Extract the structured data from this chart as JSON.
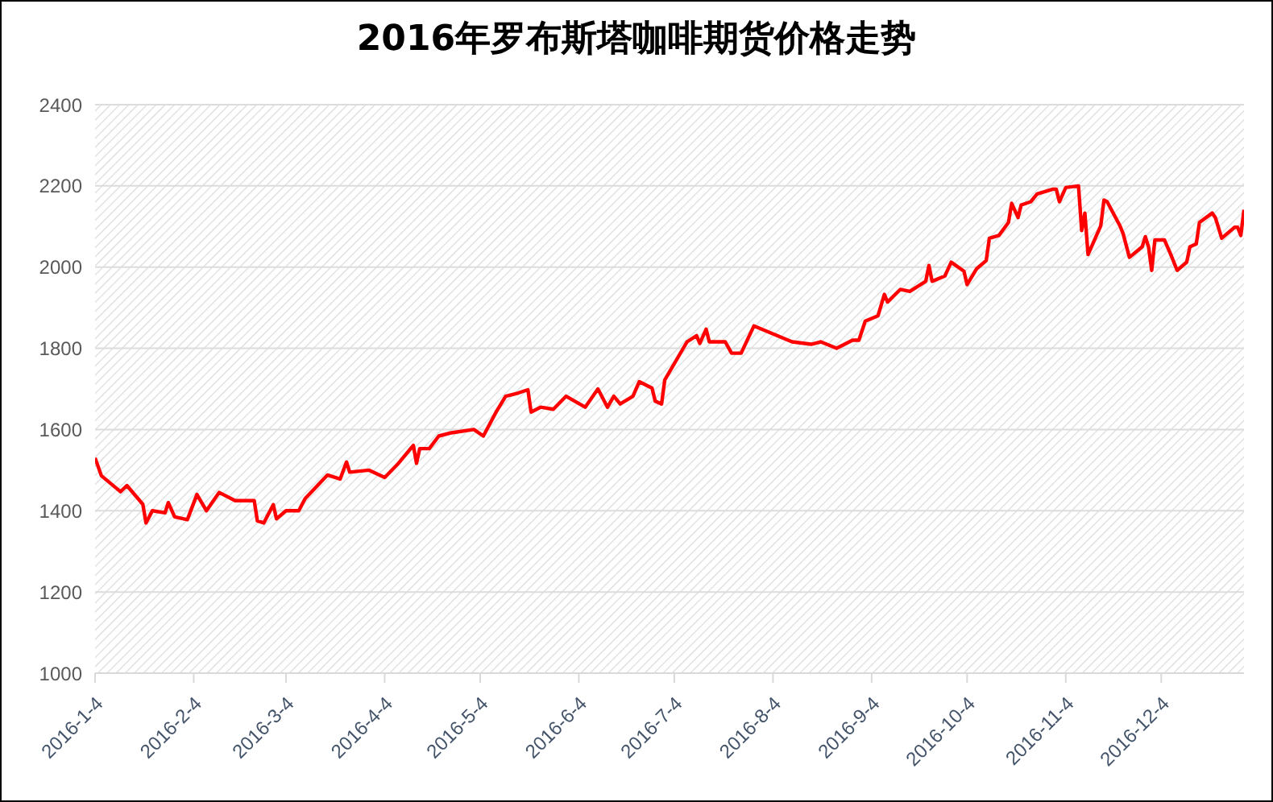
{
  "chart_data": {
    "type": "line",
    "title": "2016年罗布斯塔咖啡期货价格走势",
    "x": [
      "2016-01-04",
      "2016-01-06",
      "2016-01-12",
      "2016-01-14",
      "2016-01-19",
      "2016-01-20",
      "2016-01-22",
      "2016-01-26",
      "2016-01-27",
      "2016-01-29",
      "2016-02-02",
      "2016-02-05",
      "2016-02-08",
      "2016-02-12",
      "2016-02-17",
      "2016-02-23",
      "2016-02-24",
      "2016-02-26",
      "2016-02-29",
      "2016-03-01",
      "2016-03-04",
      "2016-03-08",
      "2016-03-10",
      "2016-03-17",
      "2016-03-21",
      "2016-03-23",
      "2016-03-24",
      "2016-03-30",
      "2016-04-04",
      "2016-04-08",
      "2016-04-13",
      "2016-04-14",
      "2016-04-15",
      "2016-04-18",
      "2016-04-21",
      "2016-04-25",
      "2016-05-02",
      "2016-05-05",
      "2016-05-09",
      "2016-05-12",
      "2016-05-16",
      "2016-05-19",
      "2016-05-20",
      "2016-05-23",
      "2016-05-27",
      "2016-05-31",
      "2016-06-06",
      "2016-06-10",
      "2016-06-13",
      "2016-06-15",
      "2016-06-17",
      "2016-06-21",
      "2016-06-23",
      "2016-06-27",
      "2016-06-28",
      "2016-06-30",
      "2016-07-01",
      "2016-07-08",
      "2016-07-11",
      "2016-07-12",
      "2016-07-14",
      "2016-07-15",
      "2016-07-20",
      "2016-07-22",
      "2016-07-25",
      "2016-07-29",
      "2016-08-10",
      "2016-08-16",
      "2016-08-19",
      "2016-08-24",
      "2016-08-29",
      "2016-08-31",
      "2016-09-02",
      "2016-09-06",
      "2016-09-08",
      "2016-09-09",
      "2016-09-13",
      "2016-09-16",
      "2016-09-21",
      "2016-09-22",
      "2016-09-23",
      "2016-09-27",
      "2016-09-29",
      "2016-10-03",
      "2016-10-04",
      "2016-10-07",
      "2016-10-10",
      "2016-10-11",
      "2016-10-14",
      "2016-10-17",
      "2016-10-18",
      "2016-10-20",
      "2016-10-21",
      "2016-10-24",
      "2016-10-26",
      "2016-10-31",
      "2016-11-01",
      "2016-11-02",
      "2016-11-04",
      "2016-11-08",
      "2016-11-09",
      "2016-11-10",
      "2016-11-11",
      "2016-11-15",
      "2016-11-16",
      "2016-11-17",
      "2016-11-21",
      "2016-11-22",
      "2016-11-24",
      "2016-11-28",
      "2016-11-29",
      "2016-11-30",
      "2016-12-01",
      "2016-12-02",
      "2016-12-05",
      "2016-12-07",
      "2016-12-09",
      "2016-12-12",
      "2016-12-13",
      "2016-12-15",
      "2016-12-16",
      "2016-12-20",
      "2016-12-21",
      "2016-12-23",
      "2016-12-27",
      "2016-12-28",
      "2016-12-29",
      "2016-12-30"
    ],
    "series": [
      {
        "color": "#ff0000",
        "values": [
          1530,
          1486,
          1447,
          1462,
          1416,
          1370,
          1400,
          1395,
          1420,
          1385,
          1378,
          1440,
          1400,
          1445,
          1425,
          1425,
          1375,
          1370,
          1415,
          1380,
          1400,
          1400,
          1430,
          1488,
          1478,
          1520,
          1495,
          1500,
          1482,
          1514,
          1561,
          1517,
          1553,
          1553,
          1584,
          1592,
          1600,
          1584,
          1643,
          1682,
          1690,
          1698,
          1643,
          1655,
          1650,
          1682,
          1655,
          1700,
          1655,
          1682,
          1663,
          1682,
          1718,
          1702,
          1670,
          1663,
          1722,
          1816,
          1831,
          1812,
          1847,
          1816,
          1816,
          1788,
          1788,
          1855,
          1816,
          1810,
          1816,
          1800,
          1820,
          1820,
          1867,
          1880,
          1933,
          1914,
          1945,
          1940,
          1965,
          2004,
          1965,
          1978,
          2012,
          1990,
          1957,
          1996,
          2016,
          2071,
          2078,
          2110,
          2157,
          2122,
          2153,
          2161,
          2180,
          2192,
          2192,
          2161,
          2196,
          2200,
          2090,
          2133,
          2031,
          2102,
          2165,
          2161,
          2102,
          2083,
          2024,
          2050,
          2075,
          2050,
          1992,
          2067,
          2067,
          2031,
          1992,
          2012,
          2050,
          2057,
          2110,
          2133,
          2122,
          2071,
          2098,
          2098,
          2078,
          2141
        ]
      }
    ],
    "xlim": [
      "2016-01-04",
      "2016-12-30"
    ],
    "xticks": [
      {
        "value": "2016-01-04",
        "label": "2016-1-4"
      },
      {
        "value": "2016-02-04",
        "label": "2016-2-4"
      },
      {
        "value": "2016-03-04",
        "label": "2016-3-4"
      },
      {
        "value": "2016-04-04",
        "label": "2016-4-4"
      },
      {
        "value": "2016-05-04",
        "label": "2016-5-4"
      },
      {
        "value": "2016-06-04",
        "label": "2016-6-4"
      },
      {
        "value": "2016-07-04",
        "label": "2016-7-4"
      },
      {
        "value": "2016-08-04",
        "label": "2016-8-4"
      },
      {
        "value": "2016-09-04",
        "label": "2016-9-4"
      },
      {
        "value": "2016-10-04",
        "label": "2016-10-4"
      },
      {
        "value": "2016-11-04",
        "label": "2016-11-4"
      },
      {
        "value": "2016-12-04",
        "label": "2016-12-4"
      }
    ],
    "ylim": [
      1000,
      2400
    ],
    "yticks": [
      1000,
      1200,
      1400,
      1600,
      1800,
      2000,
      2200,
      2400
    ],
    "grid": "y"
  }
}
